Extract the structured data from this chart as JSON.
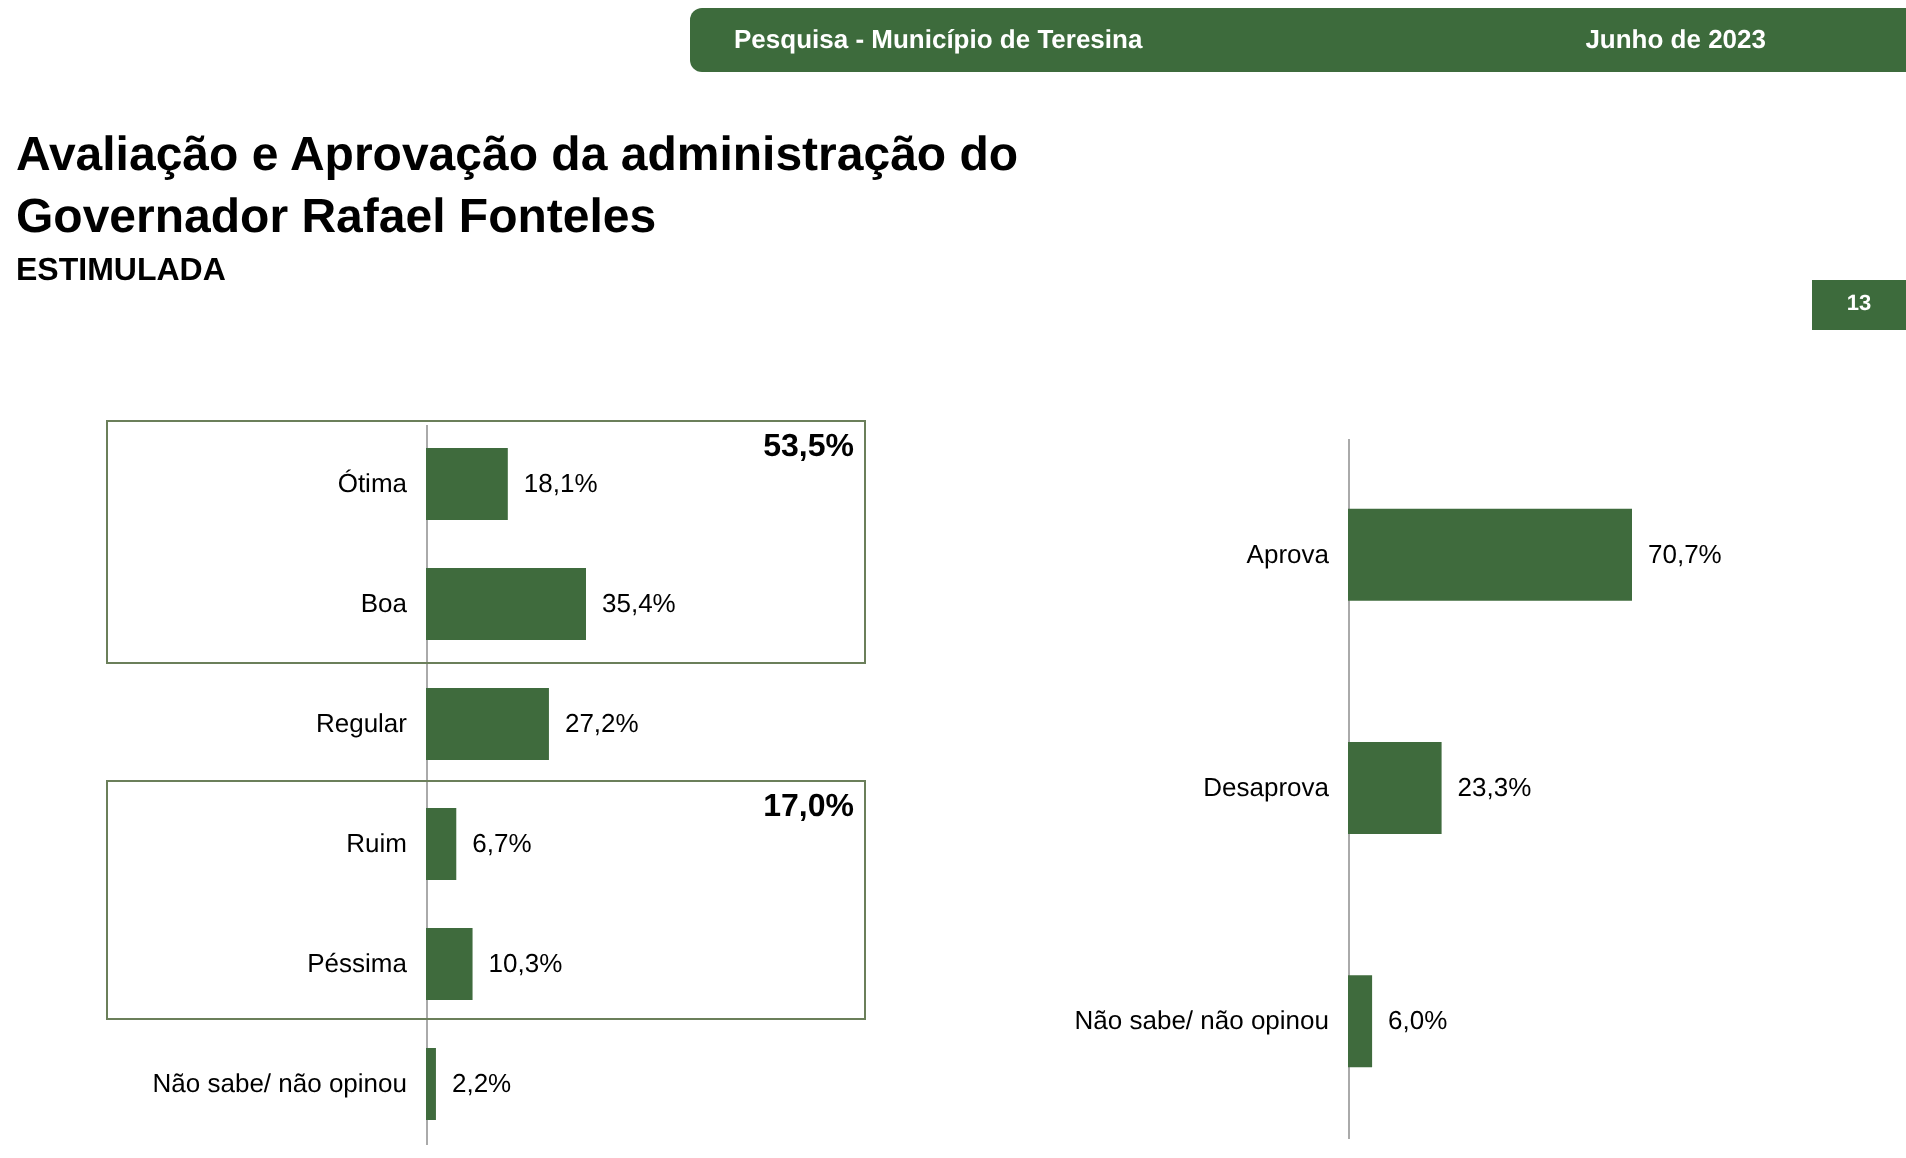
{
  "chart_data": [
    {
      "type": "bar",
      "orientation": "horizontal",
      "title": "Avaliação e Aprovação da administração do Governador Rafael Fonteles",
      "subtitle": "ESTIMULADA",
      "categories": [
        "Ótima",
        "Boa",
        "Regular",
        "Ruim",
        "Péssima",
        "Não sabe/ não opinou"
      ],
      "values": [
        18.1,
        35.4,
        27.2,
        6.7,
        10.3,
        2.2
      ],
      "value_labels": [
        "18,1%",
        "35,4%",
        "27,2%",
        "6,7%",
        "10,3%",
        "2,2%"
      ],
      "color": "#3f6b3d",
      "grid": false,
      "annotations": [
        "Pesquisa - Município de Teresina",
        "Junho de 2023",
        "13",
        "53,5%",
        "17,0%"
      ]
    },
    {
      "type": "bar",
      "orientation": "horizontal",
      "categories": [
        "Aprova",
        "Desaprova",
        "Não sabe/ não opinou"
      ],
      "values": [
        70.7,
        23.3,
        6.0
      ],
      "value_labels": [
        "70,7%",
        "23,3%",
        "6,0%"
      ],
      "color": "#3f6b3d",
      "grid": false
    }
  ]
}
